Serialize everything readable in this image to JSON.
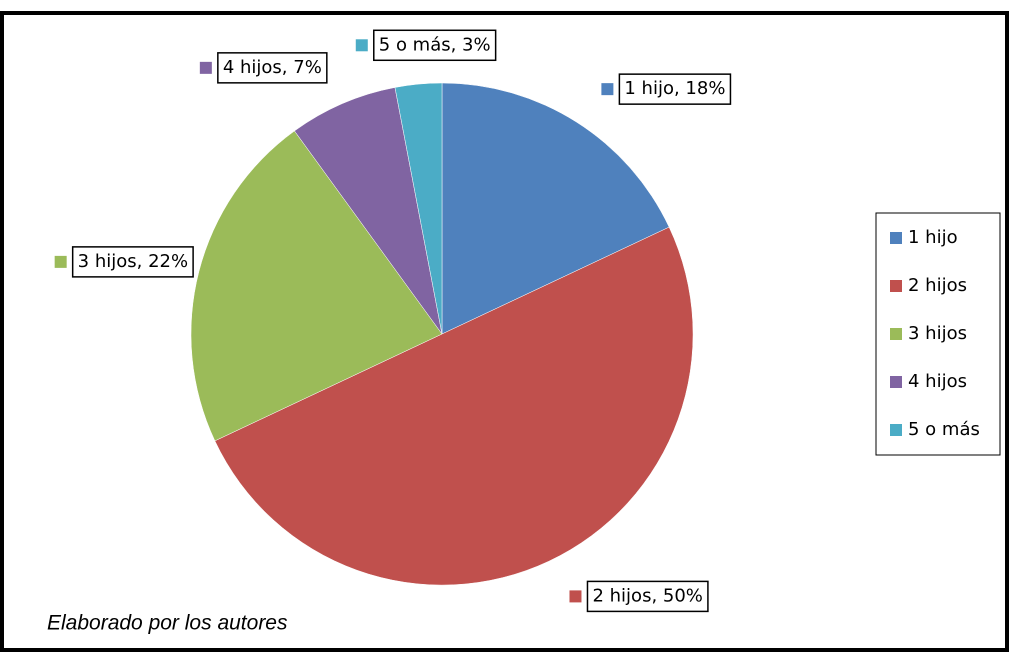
{
  "chart_data": {
    "type": "pie",
    "categories": [
      "1 hijo",
      "2 hijos",
      "3 hijos",
      "4 hijos",
      "5 o más"
    ],
    "values": [
      18,
      50,
      22,
      7,
      3
    ],
    "value_labels": [
      "1 hijo, 18%",
      "2 hijos, 50%",
      "3 hijos, 22%",
      "4 hijos, 7%",
      "5 o más, 3%"
    ],
    "colors": [
      "#4f81bd",
      "#c0504d",
      "#9bbb59",
      "#8064a2",
      "#4bacc6"
    ],
    "legend": "right",
    "annotation": "Elaborado por los autores"
  }
}
